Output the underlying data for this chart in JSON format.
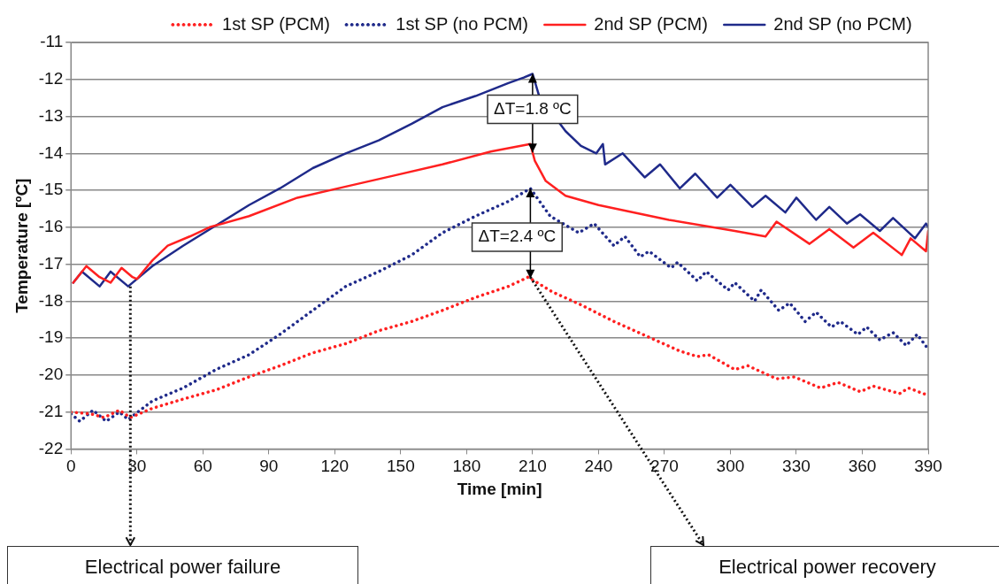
{
  "chart_data": {
    "type": "line",
    "xlabel": "Time [min]",
    "ylabel": "Temperature [ºC]",
    "xlim": [
      0,
      390
    ],
    "xticks": [
      0,
      30,
      60,
      90,
      120,
      150,
      180,
      210,
      240,
      270,
      300,
      330,
      360,
      390
    ],
    "ylim": [
      -22,
      -11
    ],
    "yticks": [
      -22,
      -21,
      -20,
      -19,
      -18,
      -17,
      -16,
      -15,
      -14,
      -13,
      -12,
      -11
    ],
    "grid": "y",
    "legend": "top",
    "marker": "none",
    "series": [
      {
        "name": "1st SP (PCM)",
        "color": "#ff2020",
        "line_style": "dotted",
        "x": [
          0,
          9,
          15,
          22,
          27,
          37,
          51,
          66,
          81,
          95,
          110,
          125,
          140,
          155,
          169,
          184,
          199,
          208,
          219,
          232,
          247,
          262,
          277,
          285,
          290,
          302,
          308,
          321,
          329,
          341,
          349,
          359,
          365,
          377,
          381,
          390
        ],
        "values": [
          -21.0,
          -21.05,
          -21.15,
          -20.95,
          -21.15,
          -20.9,
          -20.65,
          -20.4,
          -20.05,
          -19.75,
          -19.4,
          -19.15,
          -18.8,
          -18.55,
          -18.25,
          -17.9,
          -17.6,
          -17.35,
          -17.75,
          -18.1,
          -18.55,
          -18.95,
          -19.35,
          -19.5,
          -19.45,
          -19.85,
          -19.75,
          -20.1,
          -20.05,
          -20.35,
          -20.2,
          -20.45,
          -20.3,
          -20.5,
          -20.35,
          -20.55
        ]
      },
      {
        "name": "1st SP (no PCM)",
        "color": "#1f2a8a",
        "line_style": "dotted",
        "x": [
          0,
          4,
          10,
          16,
          22,
          26,
          37,
          51,
          66,
          81,
          95,
          110,
          125,
          140,
          155,
          169,
          184,
          199,
          209,
          218,
          231,
          238,
          247,
          252,
          259,
          263,
          273,
          276,
          285,
          289,
          299,
          302,
          311,
          314,
          322,
          327,
          334,
          339,
          346,
          350,
          358,
          362,
          368,
          374,
          380,
          385,
          390
        ],
        "values": [
          -21.05,
          -21.25,
          -20.95,
          -21.25,
          -21.0,
          -21.2,
          -20.7,
          -20.35,
          -19.85,
          -19.45,
          -18.9,
          -18.25,
          -17.6,
          -17.2,
          -16.75,
          -16.15,
          -15.7,
          -15.3,
          -14.95,
          -15.7,
          -16.15,
          -15.9,
          -16.5,
          -16.25,
          -16.8,
          -16.65,
          -17.1,
          -16.95,
          -17.45,
          -17.2,
          -17.7,
          -17.5,
          -18.0,
          -17.7,
          -18.25,
          -18.05,
          -18.55,
          -18.3,
          -18.7,
          -18.55,
          -18.9,
          -18.7,
          -19.05,
          -18.85,
          -19.2,
          -18.9,
          -19.3
        ]
      },
      {
        "name": "2nd SP (PCM)",
        "color": "#ff2020",
        "line_style": "solid",
        "x": [
          1,
          7,
          13,
          18,
          23,
          28,
          30,
          37,
          44,
          54,
          63,
          81,
          103,
          125,
          147,
          169,
          191,
          209,
          211,
          216,
          225,
          240,
          272,
          302,
          316,
          321,
          336,
          345,
          356,
          365,
          378,
          382,
          389,
          390
        ],
        "values": [
          -17.5,
          -17.05,
          -17.35,
          -17.5,
          -17.1,
          -17.35,
          -17.4,
          -16.9,
          -16.5,
          -16.25,
          -16.0,
          -15.7,
          -15.2,
          -14.9,
          -14.6,
          -14.3,
          -13.95,
          -13.75,
          -14.2,
          -14.75,
          -15.15,
          -15.4,
          -15.8,
          -16.1,
          -16.25,
          -15.85,
          -16.45,
          -16.05,
          -16.55,
          -16.15,
          -16.75,
          -16.3,
          -16.65,
          -16.1
        ]
      },
      {
        "name": "2nd SP (no PCM)",
        "color": "#1f2a8a",
        "line_style": "solid",
        "x": [
          1,
          5,
          13,
          18,
          26,
          37,
          51,
          66,
          81,
          95,
          110,
          125,
          140,
          155,
          169,
          184,
          199,
          206,
          210,
          213,
          225,
          232,
          239,
          242,
          243,
          251,
          261,
          268,
          277,
          284,
          294,
          300,
          310,
          316,
          325,
          330,
          339,
          345,
          353,
          359,
          368,
          374,
          384,
          389,
          390
        ],
        "values": [
          -17.5,
          -17.2,
          -17.6,
          -17.2,
          -17.6,
          -17.05,
          -16.5,
          -15.95,
          -15.4,
          -14.95,
          -14.4,
          -14.0,
          -13.65,
          -13.2,
          -12.75,
          -12.45,
          -12.1,
          -11.95,
          -11.85,
          -12.45,
          -13.4,
          -13.8,
          -14.0,
          -13.75,
          -14.3,
          -14.0,
          -14.65,
          -14.3,
          -14.95,
          -14.55,
          -15.2,
          -14.85,
          -15.45,
          -15.15,
          -15.6,
          -15.2,
          -15.8,
          -15.45,
          -15.9,
          -15.65,
          -16.1,
          -15.75,
          -16.3,
          -15.9,
          -16.0
        ]
      }
    ],
    "annotations": [
      {
        "text": "ΔT=1.8 ºC",
        "x": 210,
        "y": -11.85
      },
      {
        "text": "ΔT=2.4 ºC",
        "x": 209,
        "y": -14.95
      },
      {
        "text": "Electrical power failure",
        "x": 27,
        "y": -17.6
      },
      {
        "text": "Electrical power recovery",
        "x": 209,
        "y": -17.35
      }
    ]
  }
}
